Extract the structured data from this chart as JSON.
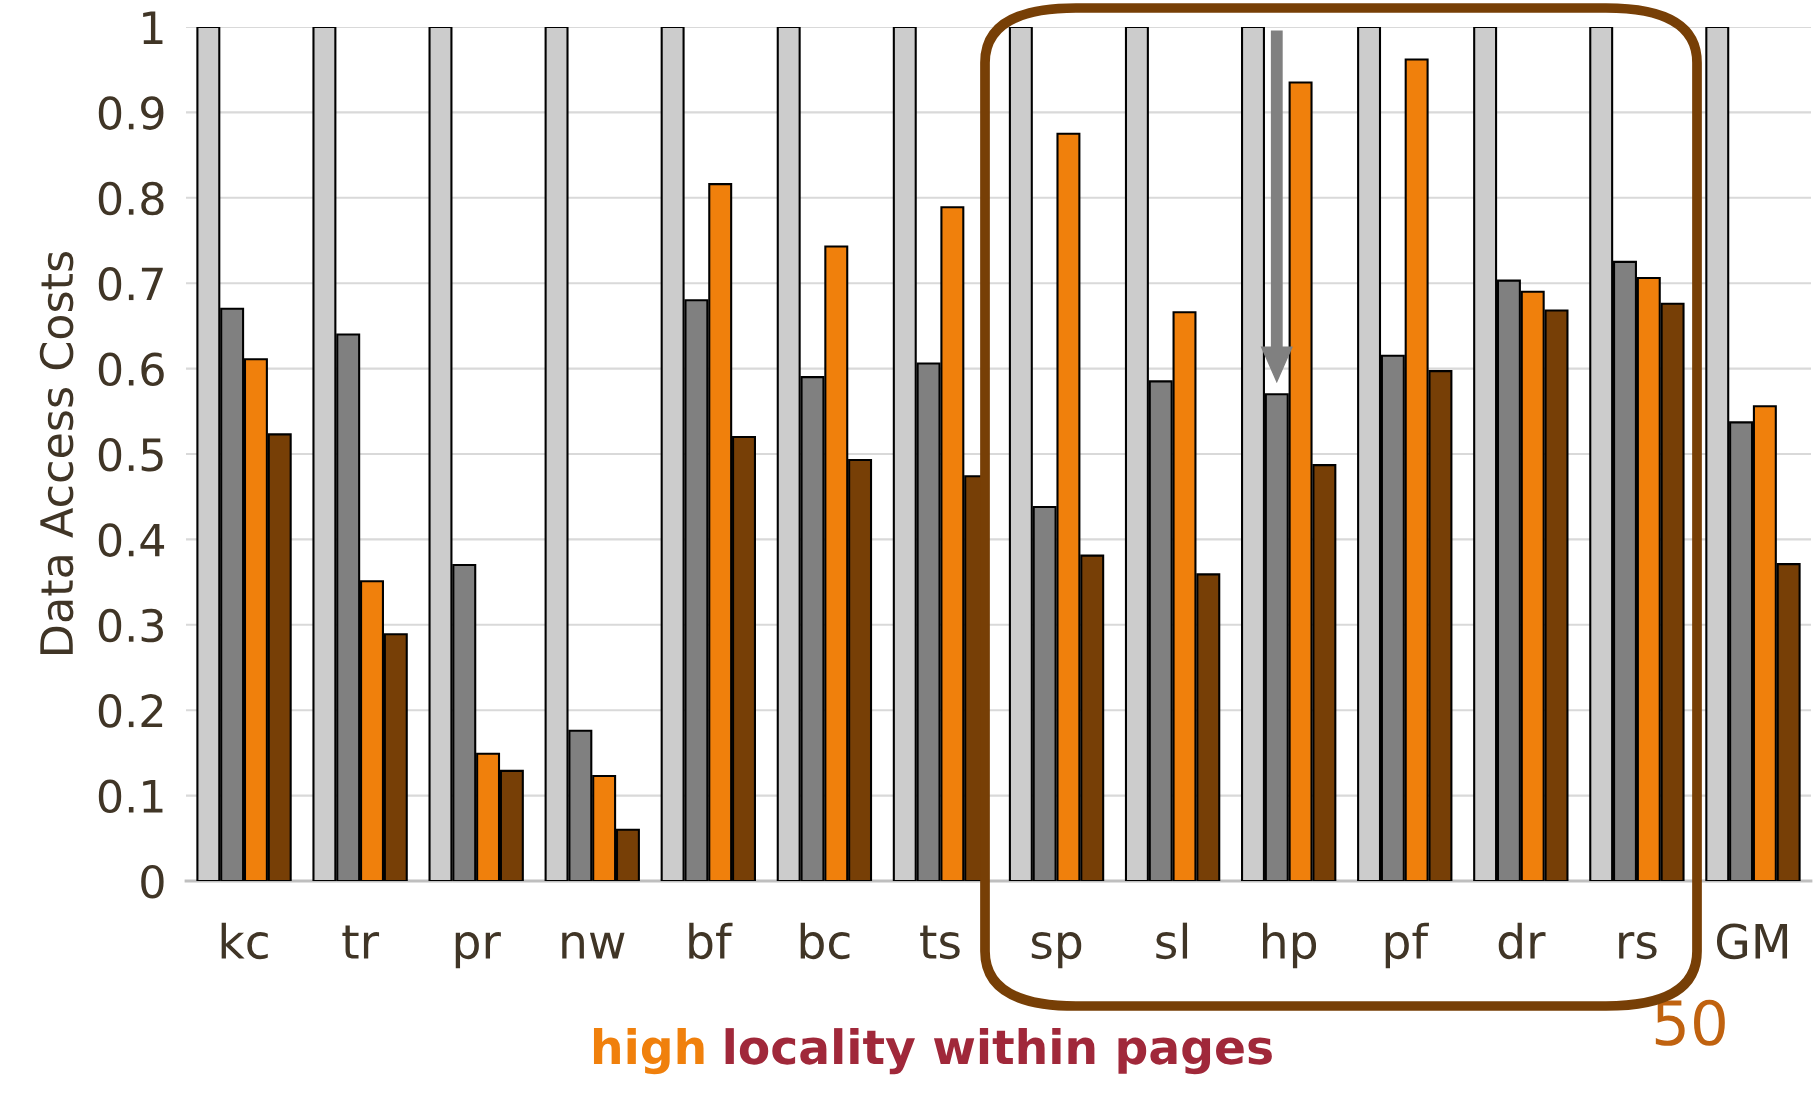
{
  "chart_data": {
    "type": "bar",
    "ylabel": "Data Access Costs",
    "categories": [
      "kc",
      "tr",
      "pr",
      "nw",
      "bf",
      "bc",
      "ts",
      "sp",
      "sl",
      "hp",
      "pf",
      "dr",
      "rs",
      "GM"
    ],
    "series": [
      {
        "color": "#cccccc",
        "values": [
          1,
          1,
          1,
          1,
          1,
          1,
          1,
          1,
          1,
          1,
          1,
          1,
          1,
          1
        ]
      },
      {
        "color": "#808080",
        "values": [
          0.67,
          0.64,
          0.37,
          0.176,
          0.68,
          0.59,
          0.606,
          0.438,
          0.585,
          0.57,
          0.615,
          0.703,
          0.725,
          0.537
        ]
      },
      {
        "color": "#f0800c",
        "values": [
          0.611,
          0.351,
          0.149,
          0.123,
          0.816,
          0.743,
          0.789,
          0.875,
          0.666,
          0.935,
          0.962,
          0.69,
          0.706,
          0.556
        ]
      },
      {
        "color": "#773f06",
        "values": [
          0.523,
          0.289,
          0.129,
          0.06,
          0.52,
          0.493,
          0.474,
          0.381,
          0.359,
          0.487,
          0.597,
          0.668,
          0.676,
          0.371
        ]
      }
    ],
    "ylim": [
      0,
      1
    ],
    "yticks": [
      0,
      0.1,
      0.2,
      0.3,
      0.4,
      0.5,
      0.6,
      0.7,
      0.8,
      0.9,
      1
    ],
    "grid": "y",
    "legend": false,
    "annotations": [
      "high",
      "locality within pages",
      "50"
    ]
  }
}
